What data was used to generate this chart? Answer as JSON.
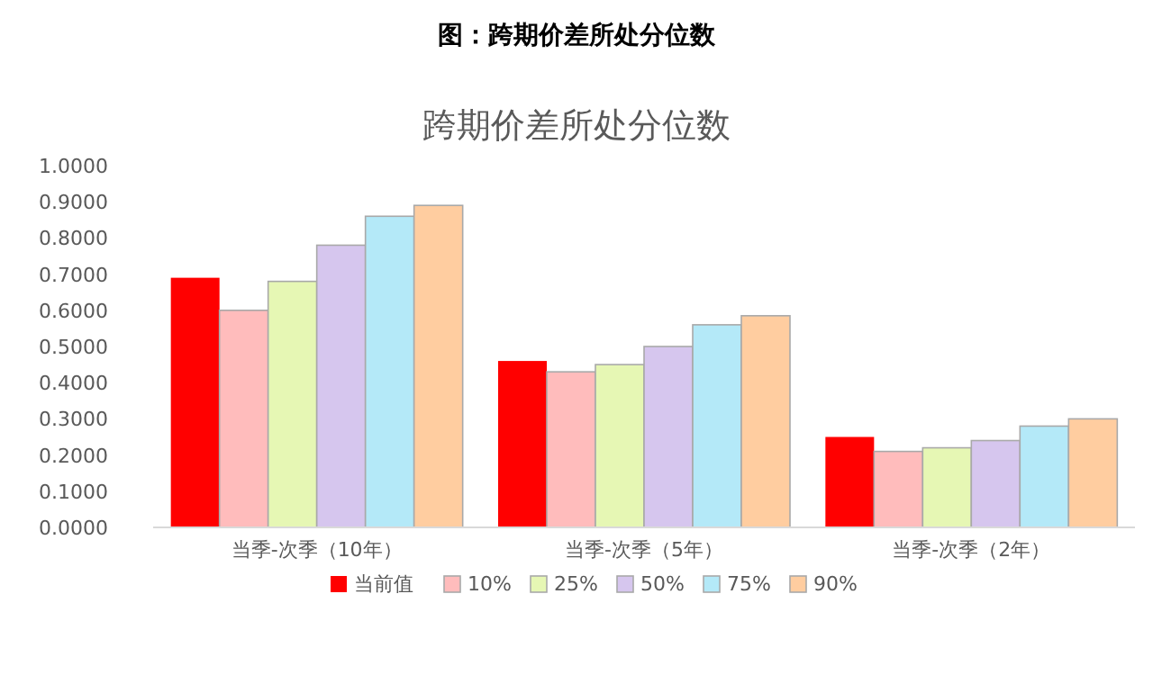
{
  "chart_data": {
    "type": "bar",
    "title": "图：跨期价差所处分位数",
    "subtitle": "跨期价差所处分位数",
    "categories": [
      "当季-次季（10年）",
      "当季-次季（5年）",
      "当季-次季（2年）"
    ],
    "series": [
      {
        "name": "当前值",
        "color": "#ff0000",
        "values": [
          0.69,
          0.46,
          0.25
        ]
      },
      {
        "name": "10%",
        "color": "#ffbcbc",
        "values": [
          0.6,
          0.43,
          0.21
        ]
      },
      {
        "name": "25%",
        "color": "#e6f7b4",
        "values": [
          0.68,
          0.45,
          0.22
        ]
      },
      {
        "name": "50%",
        "color": "#d6c6ee",
        "values": [
          0.78,
          0.5,
          0.24
        ]
      },
      {
        "name": "75%",
        "color": "#b4e9f8",
        "values": [
          0.86,
          0.56,
          0.28
        ]
      },
      {
        "name": "90%",
        "color": "#ffcda0",
        "values": [
          0.89,
          0.585,
          0.3
        ]
      }
    ],
    "ylim": [
      0,
      1
    ],
    "yticks": [
      {
        "value": 0,
        "label": "0.0000"
      },
      {
        "value": 0.1,
        "label": "0.1000"
      },
      {
        "value": 0.2,
        "label": "0.2000"
      },
      {
        "value": 0.3,
        "label": "0.3000"
      },
      {
        "value": 0.4,
        "label": "0.4000"
      },
      {
        "value": 0.5,
        "label": "0.5000"
      },
      {
        "value": 0.6,
        "label": "0.6000"
      },
      {
        "value": 0.7,
        "label": "0.7000"
      },
      {
        "value": 0.8,
        "label": "0.8000"
      },
      {
        "value": 0.9,
        "label": "0.9000"
      },
      {
        "value": 1,
        "label": "1.0000"
      }
    ],
    "grid": false,
    "legend": "bottom"
  }
}
